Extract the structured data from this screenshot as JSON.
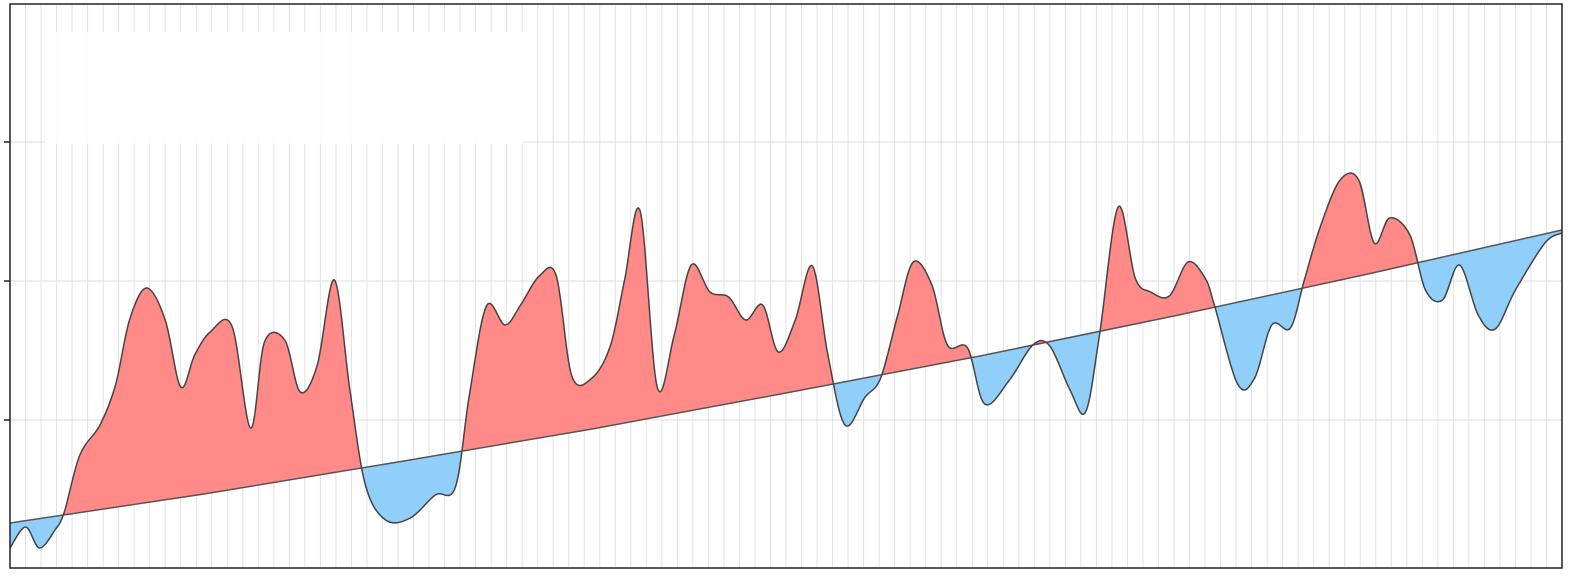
{
  "chart_data": {
    "type": "difference",
    "xlim": [
      0,
      100
    ],
    "ylim": [
      0,
      564
    ],
    "xticks": [
      0,
      1,
      2,
      3,
      4,
      5,
      6,
      7,
      8,
      9,
      10,
      11,
      12,
      13,
      14,
      15,
      16,
      17,
      18,
      19,
      20,
      21,
      22,
      23,
      24,
      25,
      26,
      27,
      28,
      29,
      30,
      31,
      32,
      33,
      34,
      35,
      36,
      37,
      38,
      39,
      40,
      41,
      42,
      43,
      44,
      45,
      46,
      47,
      48,
      49,
      50,
      51,
      52,
      53,
      54,
      55,
      56,
      57,
      58,
      59,
      60,
      61,
      62,
      63,
      64,
      65,
      66,
      67,
      68,
      69,
      70,
      71,
      72,
      73,
      74,
      75,
      76,
      77,
      78,
      79,
      80,
      81,
      82,
      83,
      84,
      85,
      86,
      87,
      88,
      89,
      90,
      91,
      92,
      93,
      94,
      95,
      96,
      97,
      98,
      99,
      100
    ],
    "yticks": [
      148,
      287,
      426
    ],
    "grid": true,
    "fill_above": "#ff8a87",
    "fill_below": "#90cffa",
    "series": [
      {
        "color": "#444444",
        "x": [
          0,
          1.0,
          1.9,
          2.9,
          3.5,
          4.5,
          5.8,
          6.8,
          7.7,
          8.8,
          10.0,
          11.0,
          11.9,
          12.9,
          14.3,
          15.5,
          16.4,
          17.7,
          18.7,
          19.8,
          20.9,
          21.9,
          22.9,
          24.2,
          25.8,
          27.4,
          28.7,
          29.6,
          30.7,
          31.9,
          32.9,
          34.1,
          35.2,
          36.2,
          37.5,
          38.7,
          39.6,
          40.6,
          41.7,
          42.8,
          43.9,
          45.1,
          46.3,
          47.4,
          48.5,
          49.5,
          50.6,
          51.7,
          52.7,
          53.8,
          55.1,
          56.1,
          57.2,
          58.2,
          59.4,
          60.4,
          61.7,
          62.8,
          64.4,
          65.9,
          67.0,
          68.3,
          69.3,
          70.2,
          71.4,
          72.5,
          73.5,
          74.7,
          75.9,
          77.0,
          77.6,
          79.1,
          80.2,
          81.3,
          82.5,
          83.4,
          84.4,
          85.7,
          86.9,
          87.9,
          88.9,
          90.2,
          91.2,
          92.3,
          93.4,
          94.6,
          95.7,
          97.0,
          98.9,
          100
        ],
        "values": [
          20,
          41,
          20,
          38,
          56,
          113,
          143,
          183,
          248,
          280,
          248,
          181,
          213,
          236,
          242,
          140,
          226,
          228,
          176,
          203,
          288,
          178,
          83,
          48,
          50,
          73,
          81,
          173,
          262,
          243,
          263,
          292,
          292,
          192,
          190,
          223,
          288,
          357,
          181,
          233,
          303,
          276,
          271,
          248,
          263,
          216,
          248,
          302,
          213,
          143,
          171,
          190,
          253,
          306,
          283,
          223,
          220,
          164,
          188,
          223,
          222,
          178,
          156,
          233,
          361,
          290,
          276,
          272,
          306,
          290,
          263,
          184,
          190,
          243,
          240,
          288,
          340,
          388,
          388,
          325,
          350,
          333,
          278,
          268,
          303,
          253,
          239,
          278,
          325,
          335
        ]
      },
      {
        "color": "#555555",
        "x": [
          0,
          12.5,
          25,
          37.5,
          50,
          62.5,
          75,
          87.5,
          100
        ],
        "values": [
          45,
          74,
          106,
          139,
          175,
          212,
          252,
          294,
          338
        ]
      }
    ]
  }
}
